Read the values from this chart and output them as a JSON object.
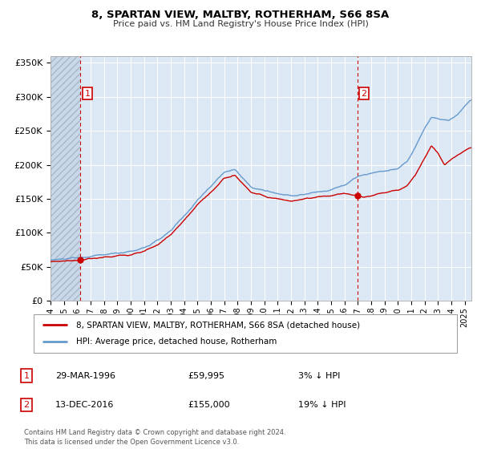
{
  "title": "8, SPARTAN VIEW, MALTBY, ROTHERHAM, S66 8SA",
  "subtitle": "Price paid vs. HM Land Registry's House Price Index (HPI)",
  "ylim": [
    0,
    360000
  ],
  "xlim_start": 1994.0,
  "xlim_end": 2025.5,
  "yticks": [
    0,
    50000,
    100000,
    150000,
    200000,
    250000,
    300000,
    350000
  ],
  "ytick_labels": [
    "£0",
    "£50K",
    "£100K",
    "£150K",
    "£200K",
    "£250K",
    "£300K",
    "£350K"
  ],
  "xtick_years": [
    1994,
    1995,
    1996,
    1997,
    1998,
    1999,
    2000,
    2001,
    2002,
    2003,
    2004,
    2005,
    2006,
    2007,
    2008,
    2009,
    2010,
    2011,
    2012,
    2013,
    2014,
    2015,
    2016,
    2017,
    2018,
    2019,
    2020,
    2021,
    2022,
    2023,
    2024,
    2025
  ],
  "bg_color": "#dce9f5",
  "hpi_color": "#6699cc",
  "price_color": "#cc0000",
  "sale1_x": 1996.24,
  "sale1_y": 59995,
  "sale2_x": 2016.95,
  "sale2_y": 155000,
  "legend_line1": "8, SPARTAN VIEW, MALTBY, ROTHERHAM, S66 8SA (detached house)",
  "legend_line2": "HPI: Average price, detached house, Rotherham",
  "note1_num": "1",
  "note1_date": "29-MAR-1996",
  "note1_price": "£59,995",
  "note1_pct": "3% ↓ HPI",
  "note2_num": "2",
  "note2_date": "13-DEC-2016",
  "note2_price": "£155,000",
  "note2_pct": "19% ↓ HPI",
  "footer": "Contains HM Land Registry data © Crown copyright and database right 2024.\nThis data is licensed under the Open Government Licence v3.0."
}
